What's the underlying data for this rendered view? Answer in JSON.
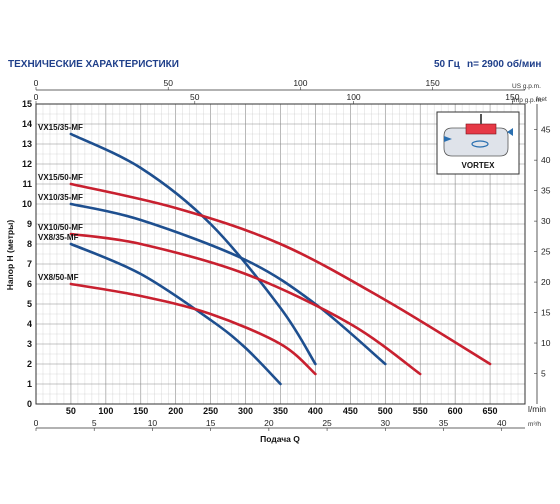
{
  "header": {
    "title": "ТЕХНИЧЕСКИЕ ХАРАКТЕРИСТИКИ",
    "frequency": "50 Гц",
    "speed": "n= 2900 об/мин"
  },
  "inset": {
    "label": "VORTEX"
  },
  "colors": {
    "header_text": "#1f3f8a",
    "curve_blue": "#1e4f8f",
    "curve_red": "#c8202f",
    "grid": "#c9c9c9",
    "grid_major": "#8a8a8a"
  },
  "chart_data": {
    "type": "line",
    "xlabel": "Подача Q",
    "ylabel": "Напор Н (метры)",
    "x_unit": "l/min",
    "x_unit_secondary": "m³/h",
    "x_unit_us": "US g.p.m.",
    "x_unit_imp": "Imp g.p.m.",
    "y_unit_right": "feet",
    "xlim": [
      0,
      700
    ],
    "ylim": [
      0,
      15
    ],
    "x_ticks": [
      "0",
      "50",
      "100",
      "150",
      "200",
      "250",
      "300",
      "350",
      "400",
      "450",
      "500",
      "550",
      "600",
      "650"
    ],
    "x_ticks_m3h": [
      "0",
      "5",
      "10",
      "15",
      "20",
      "25",
      "30",
      "35",
      "40"
    ],
    "x_ticks_us": [
      "0",
      "50",
      "100",
      "150"
    ],
    "x_ticks_imp": [
      "0",
      "50",
      "100",
      "150"
    ],
    "y_ticks": [
      "0",
      "1",
      "2",
      "3",
      "4",
      "5",
      "6",
      "7",
      "8",
      "9",
      "10",
      "11",
      "12",
      "13",
      "14",
      "15"
    ],
    "y_ticks_feet": [
      "5",
      "10",
      "15",
      "20",
      "25",
      "30",
      "35",
      "40",
      "45"
    ],
    "grid": true,
    "series": [
      {
        "name": "VX15/35-MF",
        "color": "blue",
        "x": [
          50,
          150,
          250,
          350,
          400
        ],
        "y": [
          13.5,
          11.8,
          9.0,
          4.8,
          2.0
        ]
      },
      {
        "name": "VX15/50-MF",
        "color": "red",
        "x": [
          50,
          200,
          350,
          500,
          650
        ],
        "y": [
          11.0,
          9.8,
          8.0,
          5.2,
          2.0
        ]
      },
      {
        "name": "VX10/35-MF",
        "color": "blue",
        "x": [
          50,
          150,
          300,
          400,
          500
        ],
        "y": [
          10.0,
          9.2,
          7.2,
          5.0,
          2.0
        ]
      },
      {
        "name": "VX10/50-MF",
        "color": "red",
        "x": [
          50,
          150,
          300,
          450,
          550
        ],
        "y": [
          8.5,
          8.0,
          6.5,
          4.0,
          1.5
        ]
      },
      {
        "name": "VX8/35-MF",
        "color": "blue",
        "x": [
          50,
          150,
          250,
          300,
          350
        ],
        "y": [
          8.0,
          6.5,
          4.2,
          2.8,
          1.0
        ]
      },
      {
        "name": "VX8/50-MF",
        "color": "red",
        "x": [
          50,
          150,
          250,
          350,
          400
        ],
        "y": [
          6.0,
          5.4,
          4.5,
          3.0,
          1.5
        ]
      }
    ]
  }
}
